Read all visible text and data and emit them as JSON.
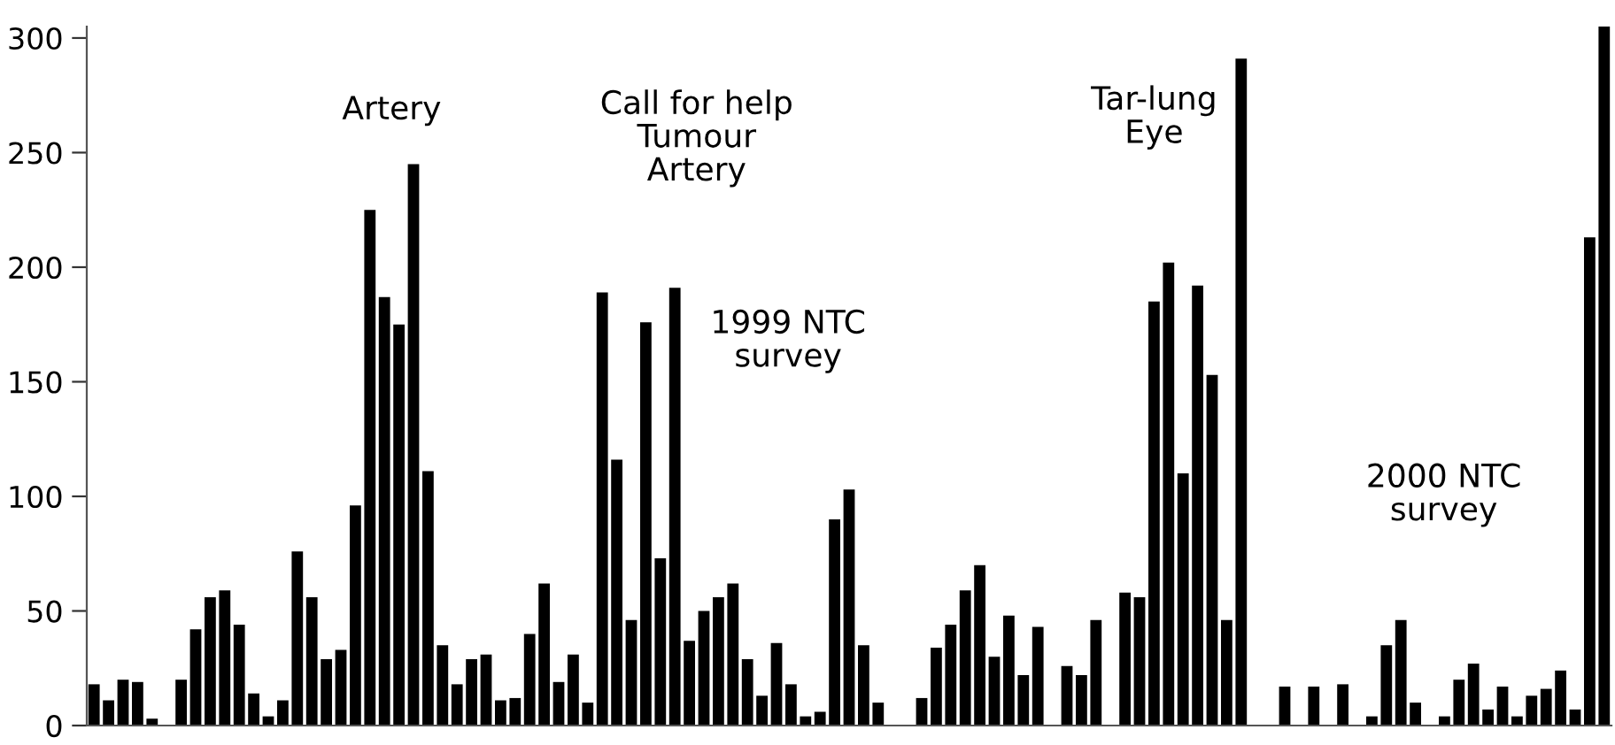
{
  "chart_data": {
    "type": "bar",
    "categories": [
      null,
      null,
      null,
      null,
      null,
      null,
      null,
      null,
      null,
      null,
      null,
      null,
      null,
      null,
      null,
      null,
      null,
      null,
      null,
      null,
      null,
      null,
      null,
      null,
      null,
      null,
      null,
      null,
      null,
      null,
      null,
      null,
      null,
      null,
      null,
      null,
      null,
      null,
      null,
      null,
      null,
      null,
      null,
      null,
      null,
      null,
      null,
      null,
      null,
      null,
      null,
      null,
      null,
      null,
      null,
      null,
      null,
      null,
      null,
      null,
      null,
      null,
      null,
      null,
      null,
      null,
      null,
      null,
      null,
      null,
      null,
      null,
      null,
      null,
      null,
      null,
      null,
      null,
      null,
      null,
      null,
      null,
      null,
      null,
      null,
      null,
      null,
      null,
      null,
      null,
      null,
      null,
      null,
      null,
      null,
      null,
      null,
      null,
      null,
      null,
      null,
      null,
      null,
      null,
      null
    ],
    "values": [
      18,
      11,
      20,
      19,
      3,
      null,
      20,
      42,
      56,
      59,
      44,
      14,
      4,
      11,
      76,
      56,
      29,
      33,
      96,
      225,
      187,
      175,
      245,
      111,
      35,
      18,
      29,
      31,
      11,
      12,
      40,
      62,
      19,
      31,
      10,
      189,
      116,
      46,
      176,
      73,
      191,
      37,
      50,
      56,
      62,
      29,
      13,
      36,
      18,
      4,
      6,
      90,
      103,
      35,
      10,
      null,
      null,
      12,
      34,
      44,
      59,
      70,
      30,
      48,
      22,
      43,
      null,
      26,
      22,
      46,
      null,
      58,
      56,
      185,
      202,
      110,
      192,
      153,
      46,
      291,
      null,
      null,
      17,
      null,
      17,
      null,
      18,
      null,
      4,
      35,
      46,
      10,
      null,
      4,
      20,
      27,
      7,
      17,
      4,
      13,
      16,
      24,
      7,
      213,
      305
    ],
    "color": "#000000",
    "ylim": [
      0,
      305
    ],
    "yticks": [
      0,
      50,
      100,
      150,
      200,
      250,
      300
    ],
    "annotations": [
      "Artery",
      "Call for help\nTumour\nArtery",
      "1999 NTC\nsurvey",
      "Tar-lung\nEye",
      "2000 NTC\nsurvey"
    ],
    "grid": false
  }
}
